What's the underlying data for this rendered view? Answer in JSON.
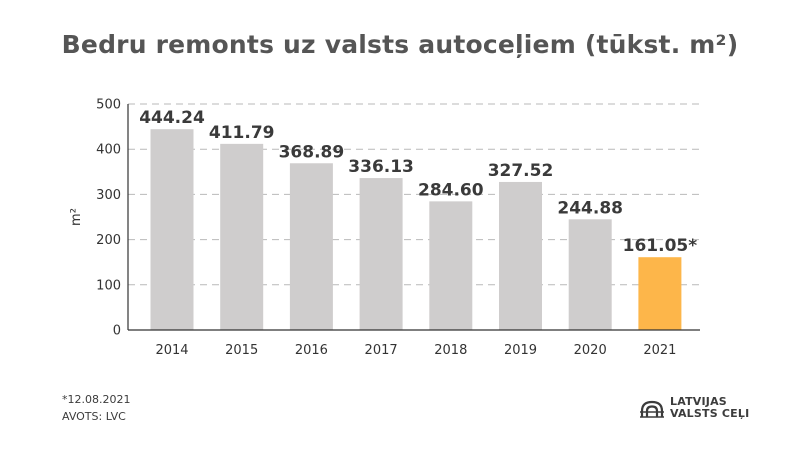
{
  "chart_data": {
    "type": "bar",
    "title": "Bedru remonts uz valsts autoceļiem (tūkst. m²)",
    "ylabel": "m²",
    "xlabel": "",
    "categories": [
      "2014",
      "2015",
      "2016",
      "2017",
      "2018",
      "2019",
      "2020",
      "2021"
    ],
    "values": [
      444.24,
      411.79,
      368.89,
      336.13,
      284.6,
      327.52,
      244.88,
      161.05
    ],
    "data_labels": [
      "444.24",
      "411.79",
      "368.89",
      "336.13",
      "284.60",
      "327.52",
      "244.88",
      "161.05*"
    ],
    "ylim": [
      0,
      500
    ],
    "yticks": [
      0,
      100,
      200,
      300,
      400,
      500
    ],
    "grid": "dashed horizontal",
    "colors": {
      "bar": "#cfcdcd",
      "highlight": "#fdb64a",
      "grid": "#b9b9b9",
      "axis": "#333333"
    },
    "highlight_index": 7
  },
  "footnote": {
    "date_note": "*12.08.2021",
    "source": "AVOTS: LVC"
  },
  "logo": {
    "line1": "LATVIJAS",
    "line2": "VALSTS CEĻI",
    "icon": "bridge-logo-icon"
  }
}
